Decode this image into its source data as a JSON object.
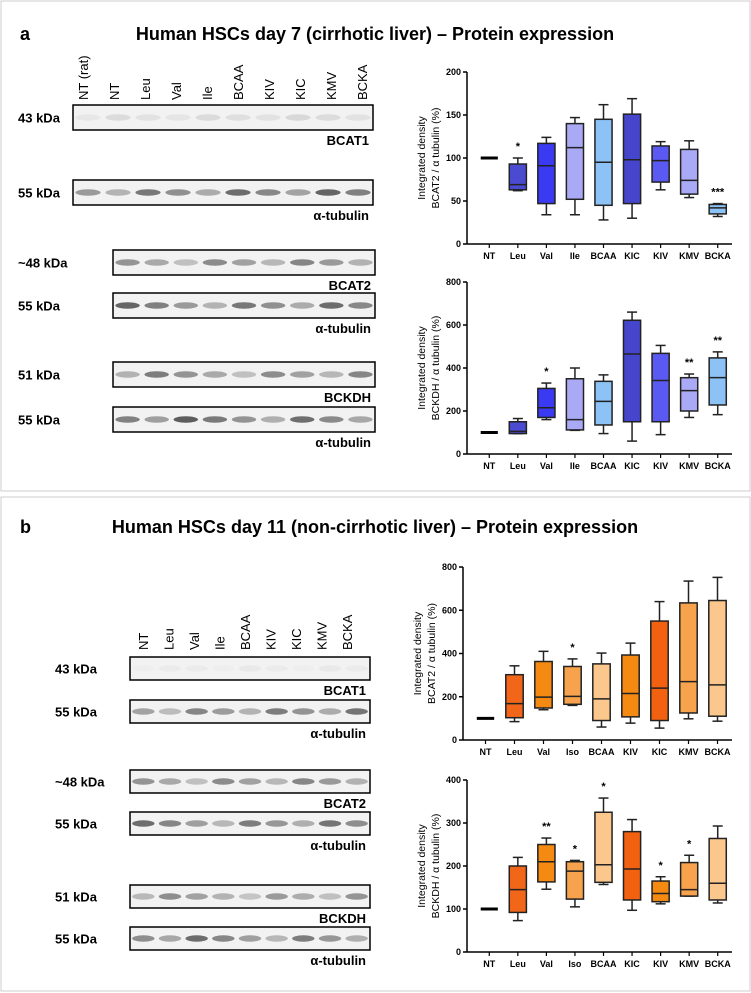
{
  "panels": [
    {
      "label": "a",
      "title": "Human HSCs day 7 (cirrhotic liver) – Protein expression",
      "lanes": [
        "NT (rat)",
        "NT",
        "Leu",
        "Val",
        "Ile",
        "BCAA",
        "KIV",
        "KIC",
        "KMV",
        "BCKA"
      ],
      "blots": [
        {
          "kda": "43 kDa",
          "protein": "BCAT1"
        },
        {
          "kda": "55 kDa",
          "protein": "α-tubulin"
        },
        {
          "kda": "~48 kDa",
          "protein": "BCAT2"
        },
        {
          "kda": "55 kDa",
          "protein": "α-tubulin"
        },
        {
          "kda": "51 kDa",
          "protein": "BCKDH"
        },
        {
          "kda": "55 kDa",
          "protein": "α-tubulin"
        }
      ]
    },
    {
      "label": "b",
      "title": "Human HSCs day 11 (non-cirrhotic liver) – Protein expression",
      "lanes": [
        "NT",
        "Leu",
        "Val",
        "Ile",
        "BCAA",
        "KIV",
        "KIC",
        "KMV",
        "BCKA"
      ],
      "blots": [
        {
          "kda": "43 kDa",
          "protein": "BCAT1"
        },
        {
          "kda": "55 kDa",
          "protein": "α-tubulin"
        },
        {
          "kda": "~48 kDa",
          "protein": "BCAT2"
        },
        {
          "kda": "55 kDa",
          "protein": "α-tubulin"
        },
        {
          "kda": "51 kDa",
          "protein": "BCKDH"
        },
        {
          "kda": "55 kDa",
          "protein": "α-tubulin"
        }
      ]
    }
  ],
  "chart_data": [
    {
      "type": "box",
      "panel": "a",
      "ylabel": [
        "Integrated density",
        "BCAT2 / α tubulin (%)"
      ],
      "ylim": [
        0,
        200
      ],
      "yticks": [
        0,
        50,
        100,
        150,
        200
      ],
      "categories": [
        "NT",
        "Leu",
        "Val",
        "Ile",
        "BCAA",
        "KIC",
        "KIV",
        "KMV",
        "BCKA"
      ],
      "boxes": [
        [
          100,
          100,
          100,
          100,
          100
        ],
        [
          62,
          63,
          69,
          93,
          100
        ],
        [
          34,
          47,
          91,
          117,
          124
        ],
        [
          34,
          52,
          112,
          140,
          147
        ],
        [
          28,
          45,
          95,
          145,
          162
        ],
        [
          30,
          47,
          98,
          151,
          169
        ],
        [
          63,
          72,
          97,
          114,
          119
        ],
        [
          54,
          58,
          74,
          110,
          120
        ],
        [
          32,
          35,
          42,
          46,
          47
        ]
      ],
      "significance": [
        "",
        "*",
        "",
        "",
        "",
        "",
        "",
        "",
        "***"
      ],
      "colors": [
        "#000000",
        "#4b4bd2",
        "#3a3af2",
        "#a9a9f6",
        "#8cc2f6",
        "#4646cc",
        "#5a5af2",
        "#a9a9f6",
        "#8cc2f6"
      ]
    },
    {
      "type": "box",
      "panel": "a",
      "ylabel": [
        "Integrated density",
        "BCKDH / α tubulin (%)"
      ],
      "ylim": [
        0,
        800
      ],
      "yticks": [
        0,
        200,
        400,
        600,
        800
      ],
      "categories": [
        "NT",
        "Leu",
        "Val",
        "Ile",
        "BCAA",
        "KIC",
        "KIV",
        "KMV",
        "BCKA"
      ],
      "boxes": [
        [
          100,
          100,
          100,
          100,
          100
        ],
        [
          95,
          95,
          105,
          150,
          165
        ],
        [
          160,
          170,
          215,
          305,
          330
        ],
        [
          110,
          112,
          160,
          350,
          400
        ],
        [
          95,
          135,
          245,
          338,
          368
        ],
        [
          60,
          150,
          465,
          622,
          660
        ],
        [
          90,
          150,
          342,
          468,
          505
        ],
        [
          170,
          200,
          295,
          355,
          372
        ],
        [
          183,
          228,
          355,
          447,
          475
        ]
      ],
      "significance": [
        "",
        "",
        "*",
        "",
        "",
        "",
        "",
        "**",
        "**"
      ],
      "colors": [
        "#000000",
        "#4b4bd2",
        "#3a3af2",
        "#a9a9f6",
        "#8cc2f6",
        "#4646cc",
        "#5a5af2",
        "#a9a9f6",
        "#8cc2f6"
      ]
    },
    {
      "type": "box",
      "panel": "b",
      "ylabel": [
        "Integrated density",
        "BCAT2 / α tubulin (%)"
      ],
      "ylim": [
        0,
        800
      ],
      "yticks": [
        0,
        200,
        400,
        600,
        800
      ],
      "categories": [
        "NT",
        "Leu",
        "Val",
        "Iso",
        "BCAA",
        "KIV",
        "KIC",
        "KMV",
        "BCKA"
      ],
      "boxes": [
        [
          100,
          100,
          100,
          100,
          100
        ],
        [
          85,
          103,
          168,
          302,
          343
        ],
        [
          140,
          148,
          198,
          363,
          410
        ],
        [
          160,
          165,
          202,
          340,
          375
        ],
        [
          60,
          90,
          190,
          352,
          402
        ],
        [
          78,
          107,
          215,
          393,
          448
        ],
        [
          55,
          90,
          240,
          550,
          640
        ],
        [
          98,
          125,
          270,
          634,
          735
        ],
        [
          87,
          110,
          255,
          645,
          752
        ]
      ],
      "significance": [
        "",
        "",
        "",
        "*",
        "",
        "",
        "",
        "",
        ""
      ],
      "colors": [
        "#000000",
        "#f2661a",
        "#f58a12",
        "#f7a24c",
        "#fbc78c",
        "#f58a12",
        "#f2610f",
        "#f7a24c",
        "#fbc78c"
      ]
    },
    {
      "type": "box",
      "panel": "b",
      "ylabel": [
        "Integrated density",
        "BCKDH / α tubulin (%)"
      ],
      "ylim": [
        0,
        400
      ],
      "yticks": [
        0,
        100,
        200,
        300,
        400
      ],
      "categories": [
        "NT",
        "Leu",
        "Val",
        "Iso",
        "BCAA",
        "KIC",
        "KIV",
        "KMV",
        "BCKA"
      ],
      "boxes": [
        [
          100,
          100,
          100,
          100,
          100
        ],
        [
          73,
          92,
          145,
          200,
          220
        ],
        [
          146,
          163,
          210,
          250,
          265
        ],
        [
          105,
          123,
          188,
          210,
          213
        ],
        [
          157,
          162,
          203,
          325,
          358
        ],
        [
          97,
          121,
          193,
          280,
          308
        ],
        [
          112,
          117,
          136,
          165,
          175
        ],
        [
          130,
          130,
          145,
          208,
          225
        ],
        [
          114,
          121,
          160,
          264,
          293
        ]
      ],
      "significance": [
        "",
        "",
        "**",
        "*",
        "*",
        "",
        "*",
        "*",
        ""
      ],
      "colors": [
        "#000000",
        "#f2661a",
        "#f58a12",
        "#f7a24c",
        "#fbc78c",
        "#f2610f",
        "#f58a12",
        "#f7a24c",
        "#fbc78c"
      ]
    }
  ]
}
